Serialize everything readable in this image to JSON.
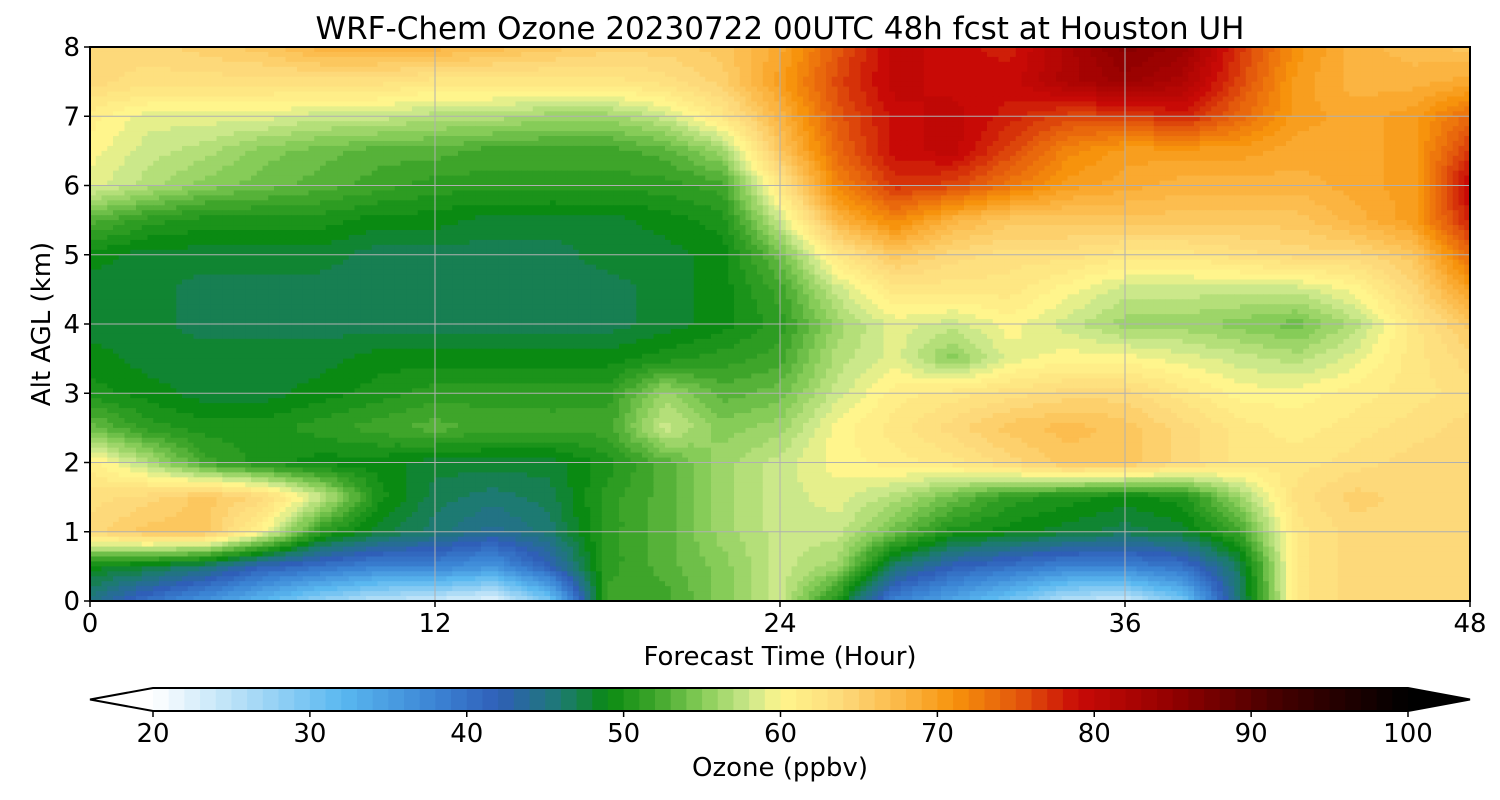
{
  "chart_data": {
    "type": "heatmap",
    "title": "WRF-Chem Ozone  20230722 00UTC 48h fcst at Houston UH",
    "xlabel": "Forecast Time (Hour)",
    "ylabel": "Alt AGL (km)",
    "xlim": [
      0,
      48
    ],
    "ylim": [
      0,
      8
    ],
    "xticks": [
      0,
      12,
      24,
      36,
      48
    ],
    "yticks": [
      0,
      1,
      2,
      3,
      4,
      5,
      6,
      7,
      8
    ],
    "grid": true,
    "colorbar": {
      "label": "Ozone  (ppbv)",
      "range": [
        20,
        100
      ],
      "ticks": [
        20,
        30,
        40,
        50,
        60,
        70,
        80,
        90,
        100
      ],
      "extend": "both",
      "orientation": "horizontal",
      "colors": [
        {
          "v": 20,
          "c": "#ffffff"
        },
        {
          "v": 26,
          "c": "#aedcf6"
        },
        {
          "v": 32,
          "c": "#5ab8f0"
        },
        {
          "v": 38,
          "c": "#3b84d4"
        },
        {
          "v": 42,
          "c": "#2f5fb8"
        },
        {
          "v": 46,
          "c": "#1d7a72"
        },
        {
          "v": 49,
          "c": "#0a8a12"
        },
        {
          "v": 52,
          "c": "#3ea52a"
        },
        {
          "v": 55,
          "c": "#86cc58"
        },
        {
          "v": 58,
          "c": "#cbe88a"
        },
        {
          "v": 60,
          "c": "#fff58c"
        },
        {
          "v": 64,
          "c": "#fdd97a"
        },
        {
          "v": 68,
          "c": "#fbb441"
        },
        {
          "v": 71,
          "c": "#f7930c"
        },
        {
          "v": 75,
          "c": "#e45a0c"
        },
        {
          "v": 79,
          "c": "#c80a06"
        },
        {
          "v": 85,
          "c": "#920000"
        },
        {
          "v": 92,
          "c": "#420000"
        },
        {
          "v": 100,
          "c": "#000000"
        }
      ]
    },
    "x": [
      0,
      2,
      4,
      6,
      8,
      10,
      12,
      14,
      16,
      18,
      20,
      22,
      24,
      26,
      28,
      30,
      32,
      34,
      36,
      38,
      40,
      42,
      44,
      46,
      48
    ],
    "y": [
      0,
      0.5,
      1,
      1.5,
      2,
      2.5,
      3,
      3.5,
      4,
      4.5,
      5,
      5.5,
      6,
      6.5,
      7,
      7.5,
      8
    ],
    "z": [
      [
        45,
        40,
        36,
        32,
        28,
        25,
        24,
        22,
        30,
        52,
        52,
        55,
        58,
        50,
        38,
        34,
        30,
        25,
        24,
        30,
        46,
        62,
        64,
        64,
        64
      ],
      [
        49,
        48,
        46,
        42,
        40,
        38,
        38,
        36,
        42,
        51,
        53,
        55,
        58,
        56,
        46,
        42,
        40,
        38,
        38,
        40,
        47,
        62,
        64,
        64,
        64
      ],
      [
        64,
        66,
        66,
        60,
        51,
        48,
        46,
        44,
        46,
        51,
        53,
        56,
        58,
        58,
        54,
        50,
        49,
        48,
        47,
        48,
        52,
        62,
        64,
        64,
        64
      ],
      [
        63,
        64,
        66,
        64,
        58,
        50,
        47,
        46,
        47,
        51,
        53,
        56,
        58,
        59,
        57,
        54,
        51,
        50,
        49,
        50,
        56,
        63,
        65,
        64,
        64
      ],
      [
        61,
        57,
        52,
        50,
        49,
        49,
        48,
        48,
        48,
        50,
        53,
        56,
        58,
        60,
        61,
        62,
        64,
        66,
        66,
        64,
        62,
        62,
        63,
        64,
        64
      ],
      [
        54,
        51,
        50,
        50,
        51,
        52,
        53,
        52,
        52,
        52,
        58,
        55,
        56,
        60,
        62,
        64,
        66,
        67,
        66,
        64,
        62,
        61,
        62,
        63,
        64
      ],
      [
        50,
        49,
        48,
        48,
        49,
        50,
        51,
        51,
        51,
        51,
        56,
        53,
        54,
        58,
        61,
        62,
        63,
        64,
        64,
        62,
        60,
        60,
        61,
        62,
        63
      ],
      [
        49,
        48,
        48,
        48,
        48,
        49,
        49,
        49,
        49,
        49,
        50,
        51,
        52,
        57,
        59,
        55,
        59,
        60,
        60,
        59,
        58,
        57,
        59,
        62,
        64
      ],
      [
        48,
        48,
        47,
        47,
        47,
        47,
        47,
        47,
        47,
        47,
        48,
        49,
        51,
        56,
        59,
        58,
        60,
        58,
        56,
        56,
        55,
        54,
        57,
        62,
        66
      ],
      [
        48,
        48,
        47,
        47,
        47,
        47,
        47,
        47,
        47,
        47,
        48,
        49,
        52,
        58,
        62,
        62,
        62,
        60,
        58,
        58,
        58,
        58,
        60,
        64,
        70
      ],
      [
        49,
        48,
        48,
        48,
        48,
        47,
        47,
        47,
        47,
        48,
        48,
        49,
        54,
        62,
        66,
        64,
        63,
        63,
        62,
        62,
        63,
        64,
        64,
        66,
        74
      ],
      [
        53,
        51,
        50,
        50,
        50,
        49,
        49,
        48,
        48,
        48,
        49,
        50,
        58,
        68,
        72,
        68,
        66,
        66,
        66,
        66,
        66,
        66,
        68,
        70,
        78
      ],
      [
        59,
        57,
        55,
        54,
        53,
        52,
        51,
        51,
        51,
        51,
        51,
        52,
        62,
        72,
        77,
        76,
        73,
        70,
        69,
        68,
        68,
        68,
        69,
        70,
        80
      ],
      [
        60,
        58,
        57,
        55,
        54,
        53,
        53,
        52,
        52,
        52,
        53,
        56,
        66,
        74,
        79,
        80,
        76,
        72,
        70,
        70,
        70,
        69,
        69,
        70,
        77
      ],
      [
        61,
        59,
        59,
        59,
        58,
        58,
        57,
        57,
        56,
        56,
        58,
        62,
        68,
        75,
        79,
        80,
        78,
        76,
        76,
        78,
        74,
        70,
        69,
        70,
        74
      ],
      [
        64,
        63,
        63,
        63,
        63,
        63,
        62,
        62,
        62,
        62,
        63,
        65,
        70,
        76,
        80,
        79,
        79,
        82,
        84,
        82,
        76,
        70,
        68,
        68,
        69
      ],
      [
        64,
        64,
        65,
        66,
        68,
        68,
        68,
        67,
        66,
        65,
        65,
        66,
        69,
        75,
        80,
        79,
        78,
        82,
        86,
        84,
        77,
        71,
        68,
        67,
        66
      ]
    ]
  }
}
